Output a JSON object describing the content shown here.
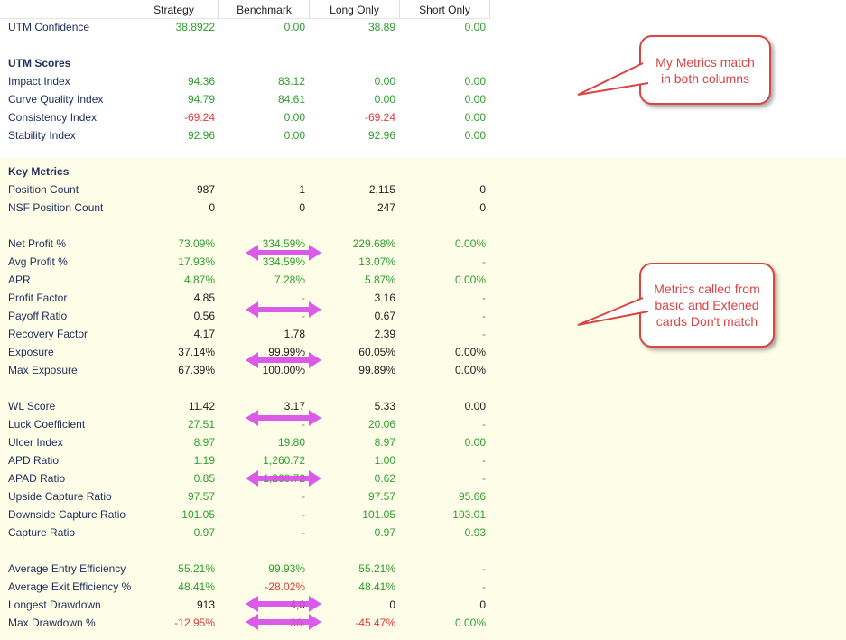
{
  "columns": [
    "Strategy",
    "Benchmark",
    "Long Only",
    "Short Only"
  ],
  "rows": [
    {
      "label": "UTM Confidence",
      "values": [
        "38.8922",
        "0.00",
        "38.89",
        "0.00"
      ],
      "colors": [
        "g",
        "g",
        "g",
        "g"
      ]
    },
    {
      "label": "UTM Scores",
      "section": true
    },
    {
      "label": "Impact Index",
      "values": [
        "94.36",
        "83.12",
        "0.00",
        "0.00"
      ],
      "colors": [
        "g",
        "g",
        "g",
        "g"
      ]
    },
    {
      "label": "Curve Quality Index",
      "values": [
        "94.79",
        "84.61",
        "0.00",
        "0.00"
      ],
      "colors": [
        "g",
        "g",
        "g",
        "g"
      ]
    },
    {
      "label": "Consistency Index",
      "values": [
        "-69.24",
        "0.00",
        "-69.24",
        "0.00"
      ],
      "colors": [
        "r",
        "g",
        "r",
        "g"
      ]
    },
    {
      "label": "Stability Index",
      "values": [
        "92.96",
        "0.00",
        "92.96",
        "0.00"
      ],
      "colors": [
        "g",
        "g",
        "g",
        "g"
      ]
    },
    {
      "label": "Key Metrics",
      "section": true
    },
    {
      "label": "Position Count",
      "values": [
        "987",
        "1",
        "2,115",
        "0"
      ],
      "colors": [
        "b",
        "b",
        "b",
        "b"
      ]
    },
    {
      "label": "NSF Position Count",
      "values": [
        "0",
        "0",
        "247",
        "0"
      ],
      "colors": [
        "b",
        "b",
        "b",
        "b"
      ]
    },
    {
      "label": "Net Profit %",
      "values": [
        "73.09%",
        "334.59%",
        "229.68%",
        "0.00%"
      ],
      "colors": [
        "g",
        "g",
        "g",
        "g"
      ]
    },
    {
      "label": "Avg Profit %",
      "values": [
        "17.93%",
        "334.59%",
        "13.07%",
        "-"
      ],
      "colors": [
        "g",
        "g",
        "g",
        "gr"
      ]
    },
    {
      "label": "APR",
      "values": [
        "4.87%",
        "7.28%",
        "5.87%",
        "0.00%"
      ],
      "colors": [
        "g",
        "g",
        "g",
        "g"
      ]
    },
    {
      "label": "Profit Factor",
      "values": [
        "4.85",
        "-",
        "3.16",
        "-"
      ],
      "colors": [
        "b",
        "gr",
        "b",
        "gr"
      ]
    },
    {
      "label": "Payoff Ratio",
      "values": [
        "0.56",
        "-",
        "0.67",
        "-"
      ],
      "colors": [
        "b",
        "gr",
        "b",
        "gr"
      ]
    },
    {
      "label": "Recovery Factor",
      "values": [
        "4.17",
        "1.78",
        "2.39",
        "-"
      ],
      "colors": [
        "b",
        "b",
        "b",
        "gr"
      ]
    },
    {
      "label": "Exposure",
      "values": [
        "37.14%",
        "99.99%",
        "60.05%",
        "0.00%"
      ],
      "colors": [
        "b",
        "b",
        "b",
        "b"
      ]
    },
    {
      "label": "Max Exposure",
      "values": [
        "67.39%",
        "100.00%",
        "99.89%",
        "0.00%"
      ],
      "colors": [
        "b",
        "b",
        "b",
        "b"
      ]
    },
    {
      "label": "WL Score",
      "values": [
        "11.42",
        "3.17",
        "5.33",
        "0.00"
      ],
      "colors": [
        "b",
        "b",
        "b",
        "b"
      ]
    },
    {
      "label": "Luck Coefficient",
      "values": [
        "27.51",
        "-",
        "20.06",
        "-"
      ],
      "colors": [
        "g",
        "gr",
        "g",
        "gr"
      ]
    },
    {
      "label": "Ulcer Index",
      "values": [
        "8.97",
        "19.80",
        "8.97",
        "0.00"
      ],
      "colors": [
        "g",
        "g",
        "g",
        "g"
      ]
    },
    {
      "label": "APD Ratio",
      "values": [
        "1.19",
        "1,260.72",
        "1.00",
        "-"
      ],
      "colors": [
        "g",
        "g",
        "g",
        "gr"
      ]
    },
    {
      "label": "APAD Ratio",
      "values": [
        "0.85",
        "1,260.72",
        "0.62",
        "-"
      ],
      "colors": [
        "g",
        "g",
        "g",
        "gr"
      ]
    },
    {
      "label": "Upside Capture Ratio",
      "values": [
        "97.57",
        "-",
        "97.57",
        "95.66"
      ],
      "colors": [
        "g",
        "gr",
        "g",
        "g"
      ]
    },
    {
      "label": "Downside Capture Ratio",
      "values": [
        "101.05",
        "-",
        "101.05",
        "103.01"
      ],
      "colors": [
        "g",
        "gr",
        "g",
        "g"
      ]
    },
    {
      "label": "Capture Ratio",
      "values": [
        "0.97",
        "-",
        "0.97",
        "0.93"
      ],
      "colors": [
        "g",
        "gr",
        "g",
        "g"
      ]
    },
    {
      "label": "Average Entry Efficiency",
      "values": [
        "55.21%",
        "99.93%",
        "55.21%",
        "-"
      ],
      "colors": [
        "g",
        "g",
        "g",
        "gr"
      ]
    },
    {
      "label": "Average Exit Efficiency %",
      "values": [
        "48.41%",
        "-28.02%",
        "48.41%",
        "-"
      ],
      "colors": [
        "g",
        "r",
        "g",
        "gr"
      ]
    },
    {
      "label": "Longest Drawdown",
      "values": [
        "913",
        "4,0",
        "0",
        "0"
      ],
      "colors": [
        "b",
        "b",
        "b",
        "b"
      ]
    },
    {
      "label": "Max Drawdown %",
      "values": [
        "-12.95%",
        "-36.",
        "-45.47%",
        "0.00%"
      ],
      "colors": [
        "r",
        "r",
        "r",
        "g"
      ]
    }
  ],
  "callouts": {
    "top": "My Metrics match in both columns",
    "middle": "Metrics called from basic and Extened cards Don't match"
  },
  "colors": {
    "accent_arrow": "#d94ce8",
    "callout_border": "#d94545"
  }
}
